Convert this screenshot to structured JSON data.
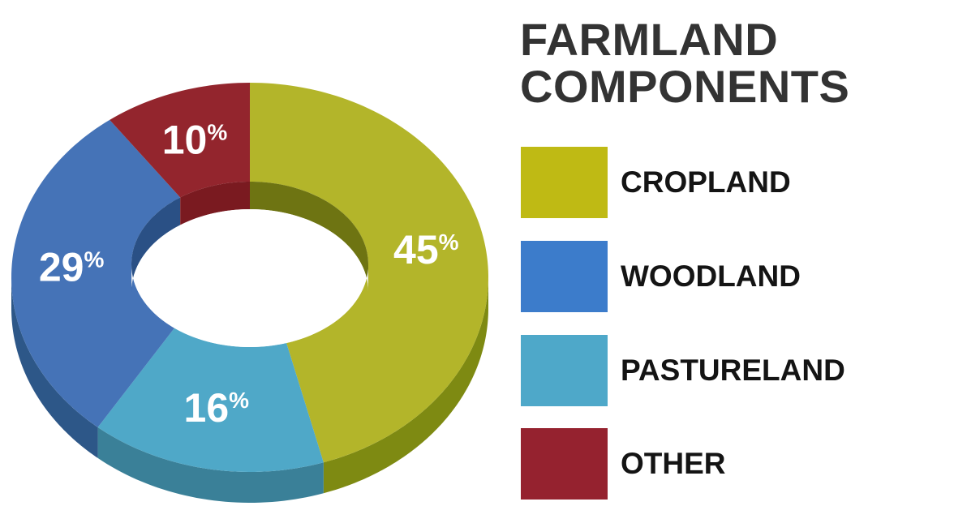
{
  "chart_data": {
    "type": "pie",
    "title_lines": [
      "FARMLAND",
      "COMPONENTS"
    ],
    "donut": true,
    "three_d": true,
    "legend_position": "right",
    "slices": [
      {
        "name": "CROPLAND",
        "value": 45,
        "label": "45",
        "color": "#b3b52a",
        "side_color": "#7e8a12",
        "inner_color": "#6e7412"
      },
      {
        "name": "PASTURELAND",
        "value": 16,
        "label": "16",
        "color": "#4fa8c8",
        "side_color": "#3a8098",
        "inner_color": "#2e6e88"
      },
      {
        "name": "WOODLAND",
        "value": 29,
        "label": "29",
        "color": "#4573b7",
        "side_color": "#2d5788",
        "inner_color": "#2a5085"
      },
      {
        "name": "OTHER",
        "value": 10,
        "label": "10",
        "color": "#93252d",
        "side_color": "#6a1a20",
        "inner_color": "#7a1a20"
      }
    ],
    "percent_symbol": "%"
  },
  "legend": [
    {
      "label": "CROPLAND",
      "color": "#bfba14"
    },
    {
      "label": "WOODLAND",
      "color": "#3c7ccb"
    },
    {
      "label": "PASTURELAND",
      "color": "#4ea8c9"
    },
    {
      "label": "OTHER",
      "color": "#95222f"
    }
  ]
}
